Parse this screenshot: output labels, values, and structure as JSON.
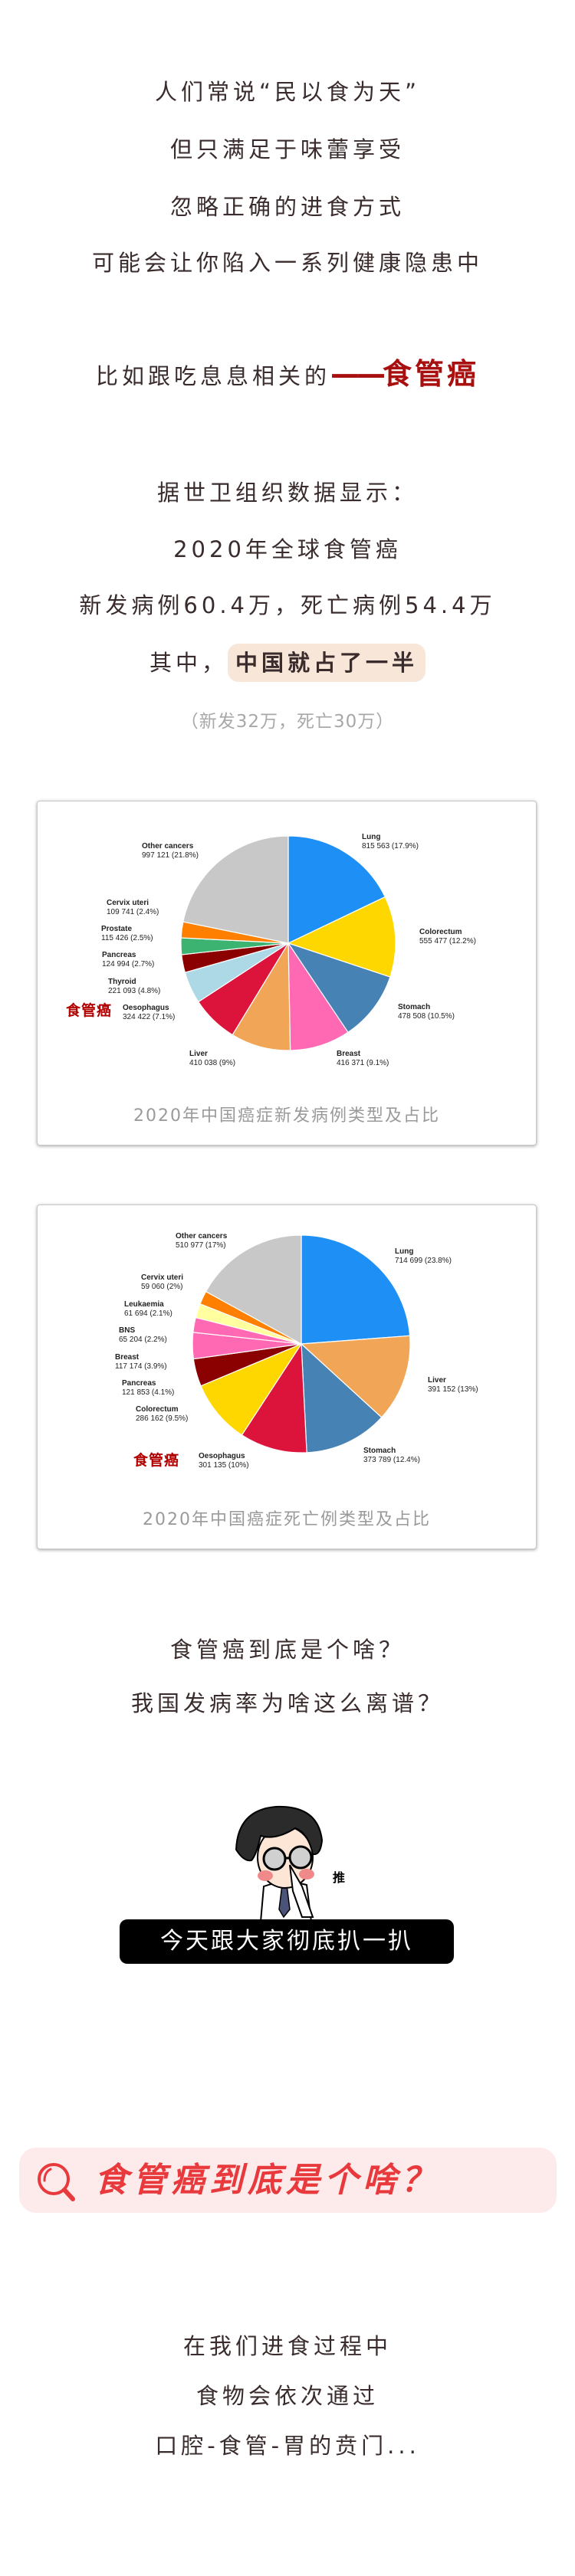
{
  "intro": {
    "lines": [
      "人们常说“民以食为天”",
      "但只满足于味蕾享受",
      "忽略正确的进食方式",
      "可能会让你陷入一系列健康隐患中"
    ],
    "highlight_prefix": "比如跟吃息息相关的",
    "highlight_dash": "——",
    "highlight_term": "食管癌"
  },
  "stats": {
    "line1": "据世卫组织数据显示：",
    "line2": "2020年全球食管癌",
    "line3": "新发病例60.4万，死亡病例54.4万",
    "line4_prefix": "其中，",
    "line4_highlight": "中国就占了一半",
    "note": "（新发32万，死亡30万）",
    "highlight_bg": "#f8e6d8"
  },
  "chart_data": [
    {
      "type": "pie",
      "title": "2020年中国癌症新发病例类型及占比",
      "annotation": "食管癌",
      "slices": [
        {
          "name": "Lung",
          "value": 815563,
          "value_label": "815 563 (17.9%)",
          "percent": 17.9,
          "color": "#1e8ff5"
        },
        {
          "name": "Colorectum",
          "value": 555477,
          "value_label": "555 477 (12.2%)",
          "percent": 12.2,
          "color": "#ffd700"
        },
        {
          "name": "Stomach",
          "value": 478508,
          "value_label": "478 508 (10.5%)",
          "percent": 10.5,
          "color": "#4682b4"
        },
        {
          "name": "Breast",
          "value": 416371,
          "value_label": "416 371 (9.1%)",
          "percent": 9.1,
          "color": "#ff69b4"
        },
        {
          "name": "Liver",
          "value": 410038,
          "value_label": "410 038 (9%)",
          "percent": 9,
          "color": "#f0a656"
        },
        {
          "name": "Oesophagus",
          "value": 324422,
          "value_label": "324 422 (7.1%)",
          "percent": 7.1,
          "color": "#dc143c"
        },
        {
          "name": "Thyroid",
          "value": 221093,
          "value_label": "221 093 (4.8%)",
          "percent": 4.8,
          "color": "#add8e6"
        },
        {
          "name": "Pancreas",
          "value": 124994,
          "value_label": "124 994 (2.7%)",
          "percent": 2.7,
          "color": "#8b0000"
        },
        {
          "name": "Prostate",
          "value": 115426,
          "value_label": "115 426 (2.5%)",
          "percent": 2.5,
          "color": "#3cb371"
        },
        {
          "name": "Cervix uteri",
          "value": 109741,
          "value_label": "109 741 (2.4%)",
          "percent": 2.4,
          "color": "#ff7f00"
        },
        {
          "name": "Other cancers",
          "value": 997121,
          "value_label": "997 121 (21.8%)",
          "percent": 21.8,
          "color": "#c8c8c8"
        }
      ]
    },
    {
      "type": "pie",
      "title": "2020年中国癌症死亡例类型及占比",
      "annotation": "食管癌",
      "slices": [
        {
          "name": "Lung",
          "value": 714699,
          "value_label": "714 699 (23.8%)",
          "percent": 23.8,
          "color": "#1e8ff5"
        },
        {
          "name": "Liver",
          "value": 391152,
          "value_label": "391 152 (13%)",
          "percent": 13,
          "color": "#f0a656"
        },
        {
          "name": "Stomach",
          "value": 373789,
          "value_label": "373 789 (12.4%)",
          "percent": 12.4,
          "color": "#4682b4"
        },
        {
          "name": "Oesophagus",
          "value": 301135,
          "value_label": "301 135 (10%)",
          "percent": 10,
          "color": "#dc143c"
        },
        {
          "name": "Colorectum",
          "value": 286162,
          "value_label": "286 162 (9.5%)",
          "percent": 9.5,
          "color": "#ffd700"
        },
        {
          "name": "Pancreas",
          "value": 121853,
          "value_label": "121 853 (4.1%)",
          "percent": 4.1,
          "color": "#8b0000"
        },
        {
          "name": "Breast",
          "value": 117174,
          "value_label": "117 174 (3.9%)",
          "percent": 3.9,
          "color": "#ff69b4"
        },
        {
          "name": "BNS",
          "value": 65204,
          "value_label": "65 204 (2.2%)",
          "percent": 2.2,
          "color": "#ff69b4"
        },
        {
          "name": "Leukaemia",
          "value": 61694,
          "value_label": "61 694 (2.1%)",
          "percent": 2.1,
          "color": "#ffffa0"
        },
        {
          "name": "Cervix uteri",
          "value": 59060,
          "value_label": "59 060 (2%)",
          "percent": 2,
          "color": "#ff7f00"
        },
        {
          "name": "Other cancers",
          "value": 510977,
          "value_label": "510 977 (17%)",
          "percent": 17,
          "color": "#c8c8c8"
        }
      ]
    }
  ],
  "questions": {
    "q1": "食管癌到底是个啥？",
    "q2": "我国发病率为啥这么离谱？"
  },
  "cartoon": {
    "sfx": "推",
    "caption": "今天跟大家彻底扒一扒"
  },
  "section": {
    "icon": "magnifier-icon",
    "title": "食管癌到底是个啥？",
    "title_color": "#e8393c",
    "bg_color": "#fdeaea"
  },
  "body": {
    "lines": [
      "在我们进食过程中",
      "食物会依次通过",
      "口腔-食管-胃的贲门..."
    ]
  }
}
